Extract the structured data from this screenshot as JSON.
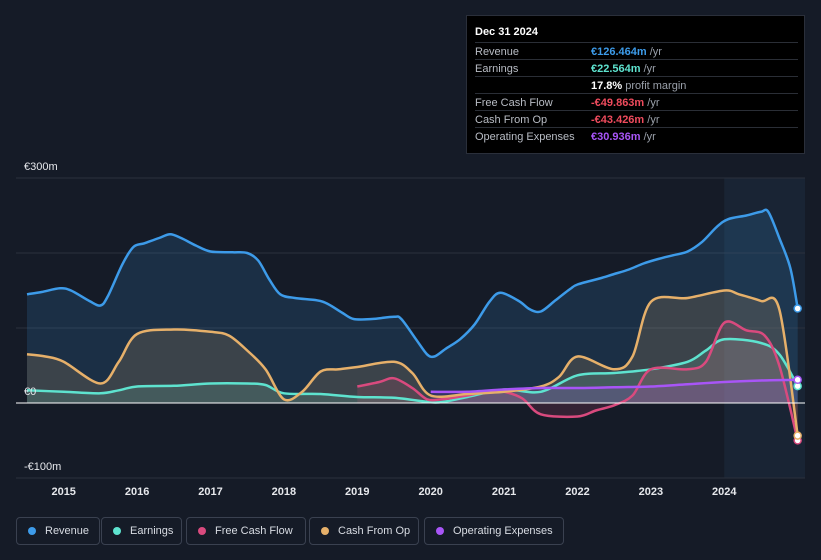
{
  "tooltip": {
    "date": "Dec 31 2024",
    "rows": [
      {
        "label": "Revenue",
        "value": "€126.464m",
        "unit": "/yr",
        "color": "#3d9be9"
      },
      {
        "label": "Earnings",
        "value": "€22.564m",
        "unit": "/yr",
        "color": "#5ee3cf"
      },
      {
        "label": "",
        "value": "17.8%",
        "unit": "profit margin",
        "color": "#ffffff"
      },
      {
        "label": "Free Cash Flow",
        "value": "-€49.863m",
        "unit": "/yr",
        "color": "#ef4b5d"
      },
      {
        "label": "Cash From Op",
        "value": "-€43.426m",
        "unit": "/yr",
        "color": "#ef4b5d"
      },
      {
        "label": "Operating Expenses",
        "value": "€30.936m",
        "unit": "/yr",
        "color": "#a855f7"
      }
    ]
  },
  "legend": [
    {
      "label": "Revenue",
      "color": "#3d9be9"
    },
    {
      "label": "Earnings",
      "color": "#5ee3cf"
    },
    {
      "label": "Free Cash Flow",
      "color": "#d94a7e"
    },
    {
      "label": "Cash From Op",
      "color": "#e6b06a"
    },
    {
      "label": "Operating Expenses",
      "color": "#a855f7"
    }
  ],
  "chart_data": {
    "type": "area",
    "y_tick_labels": [
      "€300m",
      "€0",
      "-€100m"
    ],
    "y_ticks": [
      300,
      0,
      -100
    ],
    "ylim": [
      -100,
      300
    ],
    "xlim": [
      2014.35,
      2025.1
    ],
    "x_tick_labels": [
      "2015",
      "2016",
      "2017",
      "2018",
      "2019",
      "2020",
      "2021",
      "2022",
      "2023",
      "2024"
    ],
    "x_ticks": [
      2015,
      2016,
      2017,
      2018,
      2019,
      2020,
      2021,
      2022,
      2023,
      2024
    ],
    "highlight_from": 2024.0,
    "series": [
      {
        "name": "Revenue",
        "color": "#3d9be9",
        "points": [
          [
            2014.5,
            145
          ],
          [
            2014.7,
            148
          ],
          [
            2014.95,
            153
          ],
          [
            2015.1,
            150
          ],
          [
            2015.35,
            136
          ],
          [
            2015.5,
            130
          ],
          [
            2015.6,
            142
          ],
          [
            2015.8,
            185
          ],
          [
            2015.95,
            208
          ],
          [
            2016.1,
            213
          ],
          [
            2016.3,
            220
          ],
          [
            2016.45,
            225
          ],
          [
            2016.6,
            220
          ],
          [
            2016.8,
            210
          ],
          [
            2017.0,
            202
          ],
          [
            2017.3,
            201
          ],
          [
            2017.5,
            200
          ],
          [
            2017.65,
            190
          ],
          [
            2017.8,
            165
          ],
          [
            2017.95,
            145
          ],
          [
            2018.15,
            140
          ],
          [
            2018.45,
            137
          ],
          [
            2018.6,
            132
          ],
          [
            2018.8,
            120
          ],
          [
            2018.95,
            112
          ],
          [
            2019.2,
            112
          ],
          [
            2019.5,
            115
          ],
          [
            2019.6,
            112
          ],
          [
            2019.8,
            85
          ],
          [
            2019.95,
            65
          ],
          [
            2020.05,
            62
          ],
          [
            2020.2,
            72
          ],
          [
            2020.4,
            85
          ],
          [
            2020.6,
            105
          ],
          [
            2020.8,
            135
          ],
          [
            2020.95,
            147
          ],
          [
            2021.2,
            136
          ],
          [
            2021.35,
            125
          ],
          [
            2021.5,
            122
          ],
          [
            2021.7,
            137
          ],
          [
            2021.9,
            152
          ],
          [
            2022.0,
            158
          ],
          [
            2022.3,
            166
          ],
          [
            2022.5,
            172
          ],
          [
            2022.7,
            178
          ],
          [
            2022.9,
            186
          ],
          [
            2023.1,
            192
          ],
          [
            2023.3,
            197
          ],
          [
            2023.5,
            202
          ],
          [
            2023.7,
            215
          ],
          [
            2023.9,
            235
          ],
          [
            2024.05,
            245
          ],
          [
            2024.3,
            250
          ],
          [
            2024.5,
            255
          ],
          [
            2024.6,
            255
          ],
          [
            2024.75,
            220
          ],
          [
            2024.9,
            180
          ],
          [
            2025.0,
            126
          ]
        ]
      },
      {
        "name": "Earnings",
        "color": "#5ee3cf",
        "points": [
          [
            2014.5,
            17
          ],
          [
            2015.0,
            15
          ],
          [
            2015.5,
            13
          ],
          [
            2015.75,
            17
          ],
          [
            2016.0,
            22
          ],
          [
            2016.5,
            23
          ],
          [
            2017.0,
            26
          ],
          [
            2017.5,
            26
          ],
          [
            2017.75,
            24
          ],
          [
            2018.0,
            13
          ],
          [
            2018.5,
            12
          ],
          [
            2019.0,
            8
          ],
          [
            2019.5,
            7
          ],
          [
            2020.0,
            1
          ],
          [
            2020.2,
            2
          ],
          [
            2020.5,
            8
          ],
          [
            2021.0,
            18
          ],
          [
            2021.5,
            15
          ],
          [
            2022.0,
            37
          ],
          [
            2022.5,
            40
          ],
          [
            2023.0,
            45
          ],
          [
            2023.5,
            55
          ],
          [
            2023.75,
            70
          ],
          [
            2024.0,
            85
          ],
          [
            2024.5,
            80
          ],
          [
            2024.75,
            65
          ],
          [
            2025.0,
            22.564
          ]
        ]
      },
      {
        "name": "Free Cash Flow",
        "color": "#d94a7e",
        "points": [
          [
            2019.0,
            22
          ],
          [
            2019.3,
            28
          ],
          [
            2019.5,
            33
          ],
          [
            2019.75,
            20
          ],
          [
            2019.95,
            5
          ],
          [
            2020.15,
            5
          ],
          [
            2020.5,
            10
          ],
          [
            2020.8,
            16
          ],
          [
            2021.0,
            15
          ],
          [
            2021.25,
            6
          ],
          [
            2021.5,
            -15
          ],
          [
            2022.0,
            -18
          ],
          [
            2022.25,
            -10
          ],
          [
            2022.5,
            -3
          ],
          [
            2022.75,
            10
          ],
          [
            2023.0,
            45
          ],
          [
            2023.5,
            45
          ],
          [
            2023.75,
            55
          ],
          [
            2024.0,
            107
          ],
          [
            2024.3,
            97
          ],
          [
            2024.55,
            90
          ],
          [
            2024.75,
            50
          ],
          [
            2025.0,
            -49.863
          ]
        ]
      },
      {
        "name": "Cash From Op",
        "color": "#e6b06a",
        "points": [
          [
            2014.5,
            65
          ],
          [
            2014.75,
            62
          ],
          [
            2015.0,
            55
          ],
          [
            2015.5,
            26
          ],
          [
            2015.75,
            55
          ],
          [
            2016.0,
            92
          ],
          [
            2016.5,
            98
          ],
          [
            2017.0,
            95
          ],
          [
            2017.25,
            90
          ],
          [
            2017.5,
            70
          ],
          [
            2017.75,
            45
          ],
          [
            2018.0,
            5
          ],
          [
            2018.25,
            15
          ],
          [
            2018.5,
            42
          ],
          [
            2018.75,
            45
          ],
          [
            2019.0,
            48
          ],
          [
            2019.5,
            55
          ],
          [
            2019.75,
            40
          ],
          [
            2020.0,
            10
          ],
          [
            2020.5,
            12
          ],
          [
            2021.0,
            15
          ],
          [
            2021.5,
            22
          ],
          [
            2021.75,
            35
          ],
          [
            2022.0,
            62
          ],
          [
            2022.5,
            45
          ],
          [
            2022.75,
            62
          ],
          [
            2023.0,
            135
          ],
          [
            2023.5,
            140
          ],
          [
            2024.0,
            150
          ],
          [
            2024.2,
            145
          ],
          [
            2024.5,
            136
          ],
          [
            2024.75,
            125
          ],
          [
            2025.0,
            -43.426
          ]
        ]
      },
      {
        "name": "Operating Expenses",
        "color": "#a855f7",
        "points": [
          [
            2020.0,
            15
          ],
          [
            2020.5,
            15
          ],
          [
            2021.0,
            18
          ],
          [
            2021.5,
            20
          ],
          [
            2022.0,
            20
          ],
          [
            2022.5,
            21
          ],
          [
            2023.0,
            22
          ],
          [
            2023.5,
            25
          ],
          [
            2024.0,
            28
          ],
          [
            2024.5,
            30
          ],
          [
            2025.0,
            30.936
          ]
        ]
      }
    ]
  }
}
